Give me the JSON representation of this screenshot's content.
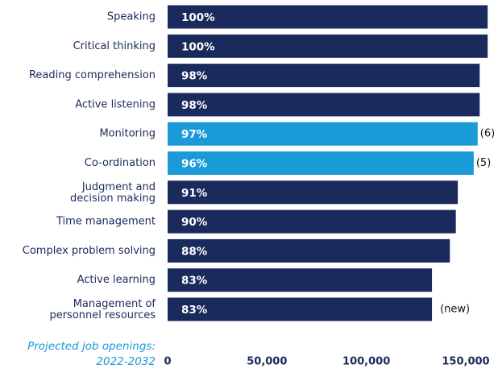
{
  "chart_data": {
    "type": "hbar",
    "categories": [
      "Speaking",
      "Critical thinking",
      "Reading comprehension",
      "Active listening",
      "Monitoring",
      "Co-ordination",
      "Judgment and\ndecision making",
      "Time management",
      "Complex problem solving",
      "Active learning",
      "Management of\npersonnel resources"
    ],
    "values": [
      161000,
      161000,
      157000,
      157000,
      156000,
      154000,
      146000,
      145000,
      142000,
      133000,
      133000
    ],
    "shares": [
      "100%",
      "100%",
      "98%",
      "98%",
      "97%",
      "96%",
      "91%",
      "90%",
      "88%",
      "83%",
      "83%"
    ],
    "rank_notes": [
      null,
      null,
      null,
      null,
      "(6)",
      "(5)",
      null,
      null,
      null,
      null,
      "(new)"
    ],
    "colors": [
      "#1b2a5c",
      "#1b2a5c",
      "#1b2a5c",
      "#1b2a5c",
      "#1a9bd7",
      "#1a9bd7",
      "#1b2a5c",
      "#1b2a5c",
      "#1b2a5c",
      "#1b2a5c",
      "#1b2a5c"
    ],
    "x_label": [
      "Projected job openings:",
      "2022-2032"
    ],
    "xlim": [
      0,
      165000
    ],
    "xticks": [
      0,
      {
        "value": 50000,
        "label": "50,000"
      },
      {
        "value": 100000,
        "label": "100,000"
      },
      {
        "value": 150000,
        "label": "150,000"
      }
    ]
  }
}
